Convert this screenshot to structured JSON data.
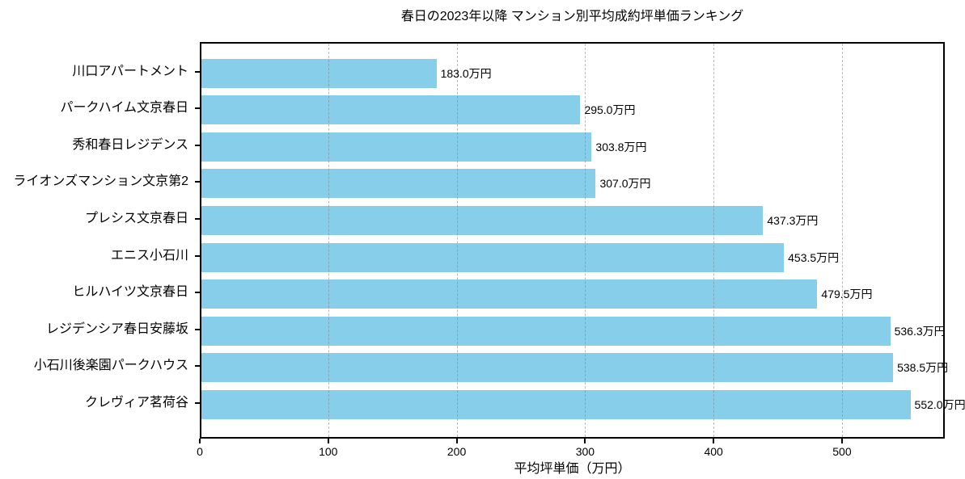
{
  "chart_data": {
    "type": "bar",
    "orientation": "horizontal",
    "title": "春日の2023年以降 マンション別平均成約坪単価ランキング",
    "categories": [
      "川口アパートメント",
      "パークハイム文京春日",
      "秀和春日レジデンス",
      "ライオンズマンション文京第2",
      "プレシス文京春日",
      "エニス小石川",
      "ヒルハイツ文京春日",
      "レジデンシア春日安藤坂",
      "小石川後楽園パークハウス",
      "クレヴィア茗荷谷"
    ],
    "values": [
      183.0,
      295.0,
      303.8,
      307.0,
      437.3,
      453.5,
      479.5,
      536.3,
      538.5,
      552.0
    ],
    "value_labels": [
      "183.0万円",
      "295.0万円",
      "303.8万円",
      "307.0万円",
      "437.3万円",
      "453.5万円",
      "479.5万円",
      "536.3万円",
      "538.5万円",
      "552.0万円"
    ],
    "xlabel": "平均坪単価（万円）",
    "ylabel": "",
    "xlim": [
      0,
      580
    ],
    "xticks": [
      0,
      100,
      200,
      300,
      400,
      500
    ],
    "grid": "vertical-dashed",
    "legend": "none",
    "bar_color": "#87CEEB"
  },
  "colors": {
    "bar": "#87CEEB",
    "grid": "#b0b0b0",
    "axis": "#000000",
    "background": "#ffffff"
  }
}
